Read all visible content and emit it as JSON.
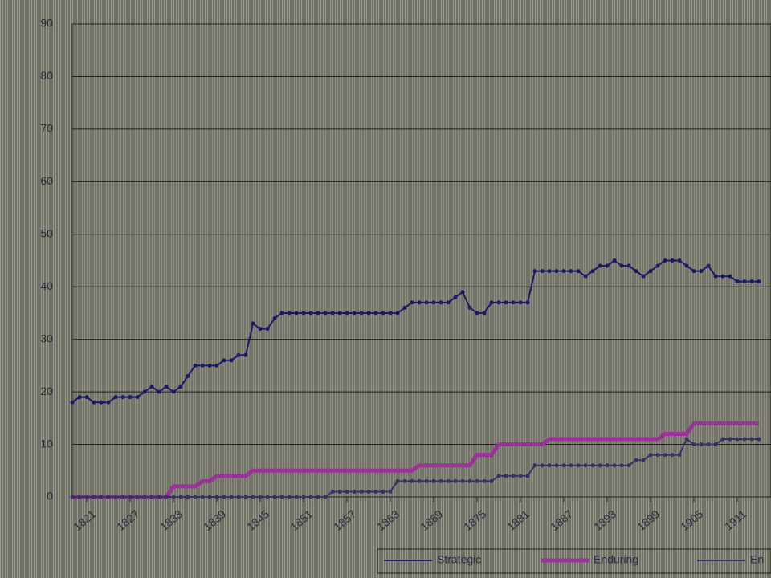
{
  "chart_data": {
    "type": "line",
    "x": [
      1819,
      1820,
      1821,
      1822,
      1823,
      1824,
      1825,
      1826,
      1827,
      1828,
      1829,
      1830,
      1831,
      1832,
      1833,
      1834,
      1835,
      1836,
      1837,
      1838,
      1839,
      1840,
      1841,
      1842,
      1843,
      1844,
      1845,
      1846,
      1847,
      1848,
      1849,
      1850,
      1851,
      1852,
      1853,
      1854,
      1855,
      1856,
      1857,
      1858,
      1859,
      1860,
      1861,
      1862,
      1863,
      1864,
      1865,
      1866,
      1867,
      1868,
      1869,
      1870,
      1871,
      1872,
      1873,
      1874,
      1875,
      1876,
      1877,
      1878,
      1879,
      1880,
      1881,
      1882,
      1883,
      1884,
      1885,
      1886,
      1887,
      1888,
      1889,
      1890,
      1891,
      1892,
      1893,
      1894,
      1895,
      1896,
      1897,
      1898,
      1899,
      1900,
      1901,
      1902,
      1903,
      1904,
      1905,
      1906,
      1907,
      1908,
      1909,
      1910,
      1911,
      1912,
      1913,
      1914
    ],
    "series": [
      {
        "name": "Strategic",
        "color": "#1a1a66",
        "marker": true,
        "values": [
          18,
          19,
          19,
          18,
          18,
          18,
          19,
          19,
          19,
          19,
          20,
          21,
          20,
          21,
          20,
          21,
          23,
          25,
          25,
          25,
          25,
          26,
          26,
          27,
          27,
          33,
          32,
          32,
          34,
          35,
          35,
          35,
          35,
          35,
          35,
          35,
          35,
          35,
          35,
          35,
          35,
          35,
          35,
          35,
          35,
          35,
          36,
          37,
          37,
          37,
          37,
          37,
          37,
          38,
          39,
          36,
          35,
          35,
          37,
          37,
          37,
          37,
          37,
          37,
          43,
          43,
          43,
          43,
          43,
          43,
          43,
          42,
          43,
          44,
          44,
          45,
          44,
          44,
          43,
          42,
          43,
          44,
          45,
          45,
          45,
          44,
          43,
          43,
          44,
          42,
          42,
          42,
          41,
          41,
          41,
          41
        ]
      },
      {
        "name": "Enduring",
        "color": "#993399",
        "marker": false,
        "values": [
          0,
          0,
          0,
          0,
          0,
          0,
          0,
          0,
          0,
          0,
          0,
          0,
          0,
          0,
          2,
          2,
          2,
          2,
          3,
          3,
          4,
          4,
          4,
          4,
          4,
          5,
          5,
          5,
          5,
          5,
          5,
          5,
          5,
          5,
          5,
          5,
          5,
          5,
          5,
          5,
          5,
          5,
          5,
          5,
          5,
          5,
          5,
          5,
          6,
          6,
          6,
          6,
          6,
          6,
          6,
          6,
          8,
          8,
          8,
          10,
          10,
          10,
          10,
          10,
          10,
          10,
          11,
          11,
          11,
          11,
          11,
          11,
          11,
          11,
          11,
          11,
          11,
          11,
          11,
          11,
          11,
          11,
          12,
          12,
          12,
          12,
          14,
          14,
          14,
          14,
          14,
          14,
          14,
          14,
          14,
          14
        ]
      },
      {
        "name": "En",
        "color": "#333366",
        "marker": true,
        "values": [
          0,
          0,
          0,
          0,
          0,
          0,
          0,
          0,
          0,
          0,
          0,
          0,
          0,
          0,
          0,
          0,
          0,
          0,
          0,
          0,
          0,
          0,
          0,
          0,
          0,
          0,
          0,
          0,
          0,
          0,
          0,
          0,
          0,
          0,
          0,
          0,
          1,
          1,
          1,
          1,
          1,
          1,
          1,
          1,
          1,
          3,
          3,
          3,
          3,
          3,
          3,
          3,
          3,
          3,
          3,
          3,
          3,
          3,
          3,
          4,
          4,
          4,
          4,
          4,
          6,
          6,
          6,
          6,
          6,
          6,
          6,
          6,
          6,
          6,
          6,
          6,
          6,
          6,
          7,
          7,
          8,
          8,
          8,
          8,
          8,
          11,
          10,
          10,
          10,
          10,
          11,
          11,
          11,
          11,
          11,
          11
        ]
      }
    ],
    "xlim": [
      1819,
      1915
    ],
    "xticks": [
      1821,
      1827,
      1833,
      1839,
      1845,
      1851,
      1857,
      1863,
      1869,
      1875,
      1881,
      1887,
      1893,
      1899,
      1905,
      1911
    ],
    "ylim": [
      0,
      90
    ],
    "yticks": [
      0,
      10,
      20,
      30,
      40,
      50,
      60,
      70,
      80,
      90
    ],
    "grid": true
  }
}
